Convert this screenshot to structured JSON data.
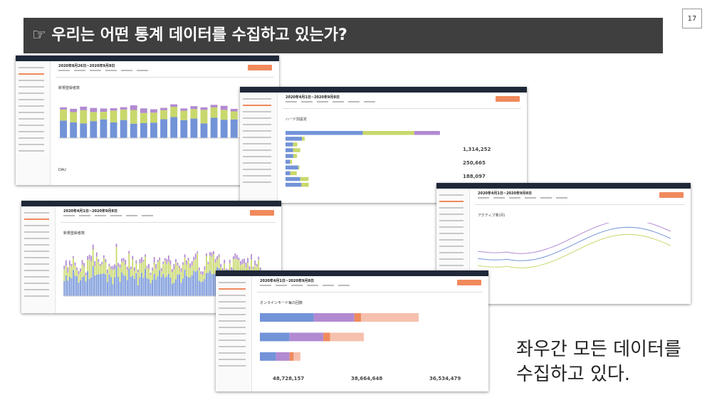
{
  "slide_number": "17",
  "title": "☞ 우리는 어떤 통계 데이터를 수집하고 있는가?",
  "caption": [
    "좌우간 모든 데이터를",
    "수집하고 있다."
  ],
  "screenshots": [
    {
      "period": "2020年8月26日~2020年9月8日",
      "heading": "新規登録者数",
      "subheading": "DAU"
    },
    {
      "period": "2020年4月1日~2020年9月8日",
      "heading": "ハード別設定",
      "stats": [
        "1,314,252",
        "250,665",
        "188,097"
      ]
    },
    {
      "period": "2020年4月1日~2020年9月8日",
      "heading": "新規登録者数"
    },
    {
      "period": "2020年4月1日~2020年9月8日",
      "heading": "アクティブ率(月)"
    },
    {
      "period": "2020年4月1日~2020年9月8日",
      "heading": "オンラインモード毎の回数",
      "stats": [
        "48,728,157",
        "38,664,648",
        "36,534,479"
      ]
    }
  ]
}
